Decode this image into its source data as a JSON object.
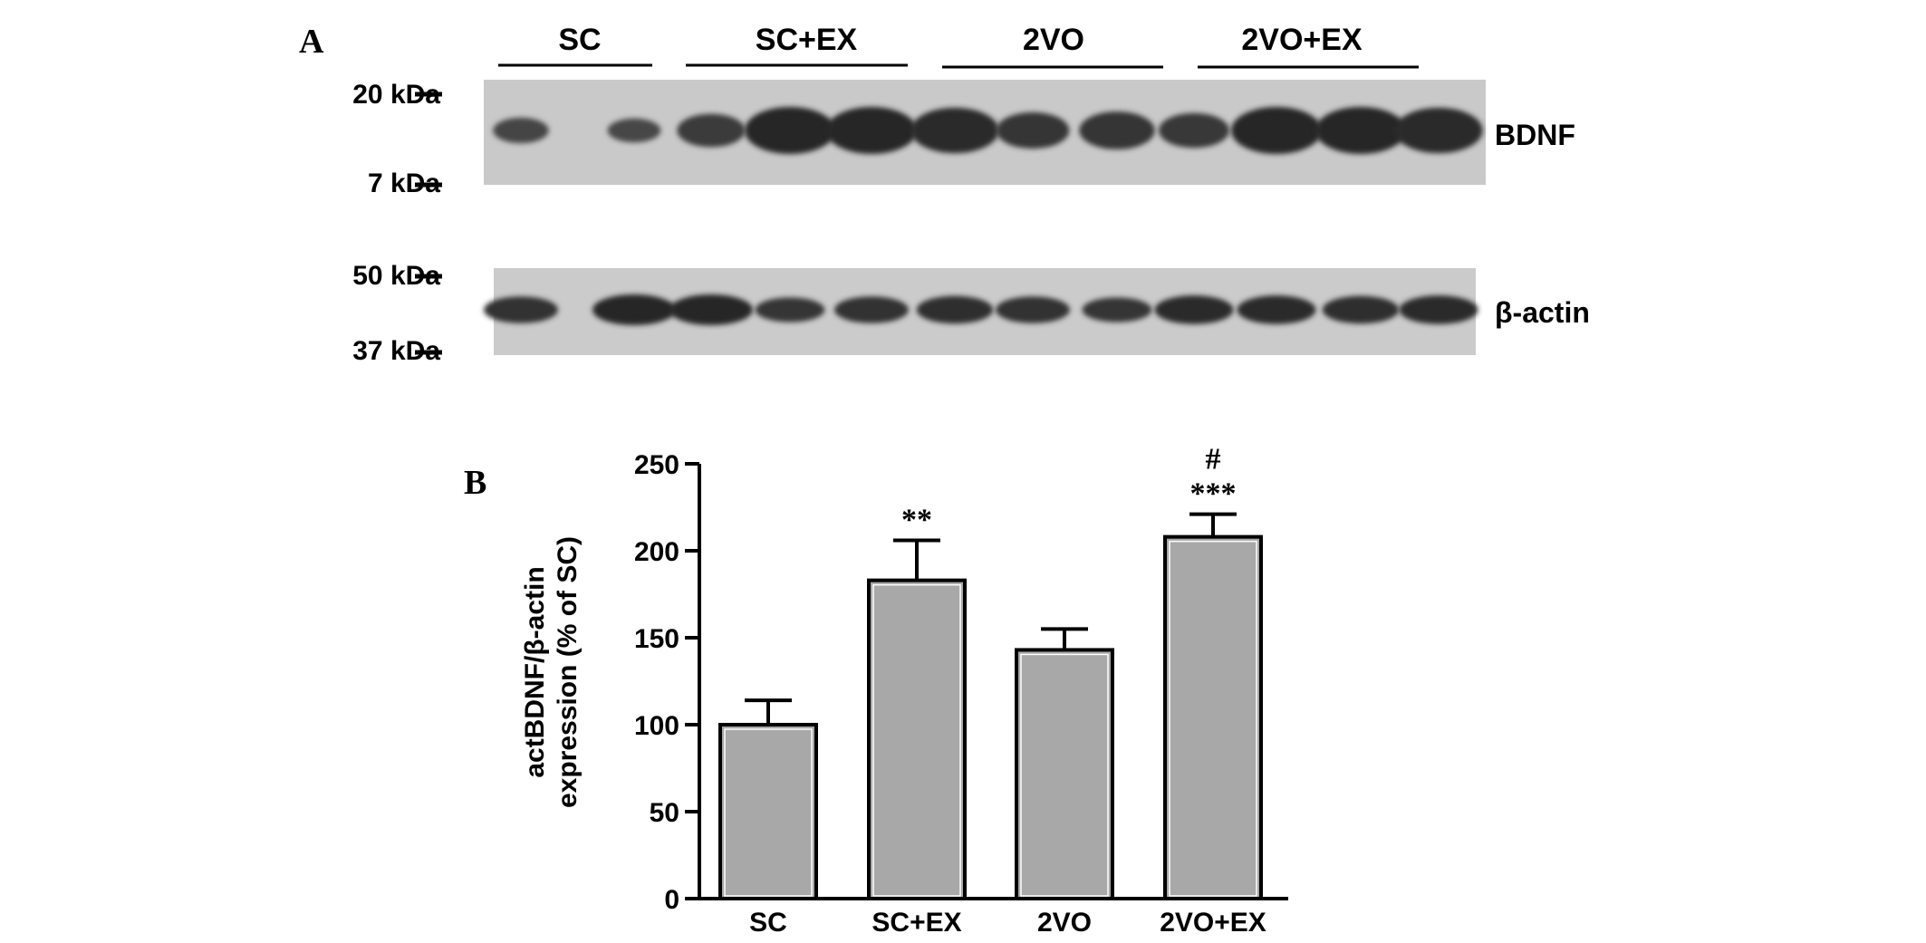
{
  "panel_a": {
    "letter": "A",
    "groups": [
      "SC",
      "SC+EX",
      "2VO",
      "2VO+EX"
    ],
    "blots": [
      {
        "label": "BDNF",
        "marker_top": "20 kDa",
        "marker_bottom": "7 kDa",
        "relative_band_intensity": [
          0.3,
          0.25,
          0.55,
          1.0,
          1.0,
          0.95,
          0.65,
          0.7,
          0.6,
          1.0,
          1.0,
          0.95
        ]
      },
      {
        "label": "β-actin",
        "marker_top": "50 kDa",
        "marker_bottom": "37 kDa",
        "relative_band_intensity": [
          0.8,
          1.0,
          1.0,
          0.7,
          0.8,
          0.85,
          0.8,
          0.7,
          0.9,
          0.9,
          0.85,
          0.9
        ]
      }
    ]
  },
  "panel_b": {
    "letter": "B"
  },
  "chart_data": {
    "type": "bar",
    "categories": [
      "SC",
      "SC+EX",
      "2VO",
      "2VO+EX"
    ],
    "series": [
      {
        "values": [
          100,
          183,
          143,
          208
        ],
        "error": [
          14,
          23,
          12,
          13
        ]
      }
    ],
    "significance": [
      [],
      [
        "**"
      ],
      [],
      [
        "***",
        "#"
      ]
    ],
    "title": "",
    "xlabel": "",
    "ylabel": [
      "actBDNF/β-actin",
      "expression (% of SC)"
    ],
    "ylim": [
      0,
      250
    ],
    "yticks": [
      0,
      50,
      100,
      150,
      200,
      250
    ],
    "grid": false,
    "legend": "none",
    "bar_color": "#a8a8a8"
  }
}
